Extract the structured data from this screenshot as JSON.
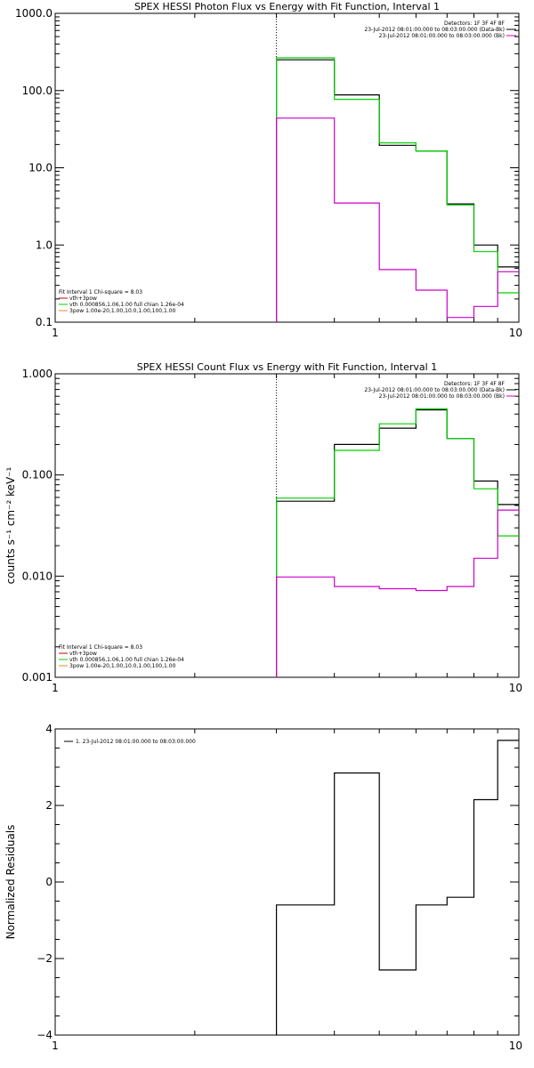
{
  "colors": {
    "black": "#000000",
    "green": "#00d000",
    "magenta": "#cc00cc",
    "orange": "#e09020",
    "red": "#d00000"
  },
  "chart_data": [
    {
      "id": "photon",
      "type": "line",
      "title": "SPEX HESSI Photon Flux vs Energy with Fit Function, Interval 1",
      "xlabel": "",
      "ylabel": "",
      "xscale": "log",
      "yscale": "log",
      "xlim": [
        1,
        10
      ],
      "ylim": [
        0.1,
        1000
      ],
      "xticks": [
        "1",
        "10"
      ],
      "yticks": [
        {
          "v": 0.1,
          "label": "0.1"
        },
        {
          "v": 1,
          "label": "1.0"
        },
        {
          "v": 10,
          "label": "10.0"
        },
        {
          "v": 100,
          "label": "100.0"
        },
        {
          "v": 1000,
          "label": "1000.0"
        }
      ],
      "dotted_x": 3.0,
      "info_top_right": [
        {
          "text": "Detectors: 1F 3F 4F 8F",
          "color": ""
        },
        {
          "text": "23-Jul-2012 08:01:00.000 to 08:03:00.000 (Data-Bk)",
          "color": "#000000"
        },
        {
          "text": "23-Jul-2012 08:01:00.000 to 08:03:00.000 (Bk)",
          "color": "#cc00cc"
        }
      ],
      "legend_bottom_left": [
        {
          "text": "Fit Interval 1   Chi-square = 8.03",
          "color": ""
        },
        {
          "text": "vth+3pow",
          "color": "#d00000"
        },
        {
          "text": "vth 0.000856,1.06,1.00  full chian 1.26e-04",
          "color": "#00d000"
        },
        {
          "text": "3pow 1.00e-20,1.00,10.0,1.00,100,1.00",
          "color": "#e09020"
        }
      ],
      "series": [
        {
          "name": "Data-Bk",
          "color": "#000000",
          "edges": [
            3.0,
            4.0,
            5.0,
            6.0,
            7.0,
            8.0,
            9.0,
            10.0
          ],
          "values": [
            250,
            88,
            19.5,
            16.5,
            3.4,
            1.0,
            0.52
          ]
        },
        {
          "name": "vth",
          "color": "#00d000",
          "edges": [
            3.0,
            4.0,
            5.0,
            6.0,
            7.0,
            8.0,
            9.0,
            10.0
          ],
          "values": [
            265,
            77,
            21,
            16.5,
            3.3,
            0.82,
            0.24
          ]
        },
        {
          "name": "Bk",
          "color": "#cc00cc",
          "edges": [
            3.0,
            4.0,
            5.0,
            6.0,
            7.0,
            8.0,
            9.0,
            10.0
          ],
          "values": [
            44,
            3.5,
            0.48,
            0.26,
            0.115,
            0.16,
            0.45
          ]
        }
      ]
    },
    {
      "id": "count",
      "type": "line",
      "title": "SPEX HESSI Count Flux vs Energy with Fit Function, Interval 1",
      "xlabel": "",
      "ylabel": "counts s⁻¹ cm⁻² keV⁻¹",
      "xscale": "log",
      "yscale": "log",
      "xlim": [
        1,
        10
      ],
      "ylim": [
        0.001,
        1
      ],
      "xticks": [
        "1",
        "10"
      ],
      "yticks": [
        {
          "v": 0.001,
          "label": "0.001"
        },
        {
          "v": 0.01,
          "label": "0.010"
        },
        {
          "v": 0.1,
          "label": "0.100"
        },
        {
          "v": 1,
          "label": "1.000"
        }
      ],
      "dotted_x": 3.0,
      "info_top_right": [
        {
          "text": "Detectors: 1F 3F 4F 8F",
          "color": ""
        },
        {
          "text": "23-Jul-2012 08:01:00.000 to 08:03:00.000 (Data-Bk)",
          "color": "#000000"
        },
        {
          "text": "23-Jul-2012 08:01:00.000 to 08:03:00.000 (Bk)",
          "color": "#cc00cc"
        }
      ],
      "legend_bottom_left": [
        {
          "text": "Fit Interval 1   Chi-square = 8.03",
          "color": ""
        },
        {
          "text": "vth+3pow",
          "color": "#d00000"
        },
        {
          "text": "vth 0.000856,1.06,1.00  full chian 1.26e-04",
          "color": "#00d000"
        },
        {
          "text": "3pow 1.00e-20,1.00,10.0,1.00,100,1.00",
          "color": "#e09020"
        }
      ],
      "series": [
        {
          "name": "Data-Bk",
          "color": "#000000",
          "edges": [
            3.0,
            4.0,
            5.0,
            6.0,
            7.0,
            8.0,
            9.0,
            10.0
          ],
          "values": [
            0.055,
            0.2,
            0.29,
            0.44,
            0.23,
            0.087,
            0.051
          ]
        },
        {
          "name": "vth",
          "color": "#00d000",
          "edges": [
            3.0,
            4.0,
            5.0,
            6.0,
            7.0,
            8.0,
            9.0,
            10.0
          ],
          "values": [
            0.059,
            0.175,
            0.32,
            0.45,
            0.23,
            0.073,
            0.025
          ]
        },
        {
          "name": "Bk",
          "color": "#cc00cc",
          "edges": [
            3.0,
            4.0,
            5.0,
            6.0,
            7.0,
            8.0,
            9.0,
            10.0
          ],
          "values": [
            0.0098,
            0.0079,
            0.0075,
            0.0072,
            0.0079,
            0.015,
            0.045
          ]
        }
      ]
    },
    {
      "id": "resid",
      "type": "line",
      "title": "",
      "xlabel": "",
      "ylabel": "Normalized Residuals",
      "xscale": "log",
      "yscale": "linear",
      "xlim": [
        1,
        10
      ],
      "ylim": [
        -4,
        4
      ],
      "xticks": [
        "1",
        "10"
      ],
      "yticks": [
        {
          "v": -4,
          "label": "−4"
        },
        {
          "v": -2,
          "label": "−2"
        },
        {
          "v": 0,
          "label": "0"
        },
        {
          "v": 2,
          "label": "2"
        },
        {
          "v": 4,
          "label": "4"
        }
      ],
      "dotted_x": null,
      "info_top_right": [],
      "legend_top_left": [
        {
          "text": "1. 23-Jul-2012 08:01:00.000 to 08:03:00.000",
          "color": "#000000"
        }
      ],
      "legend_bottom_left": [],
      "series": [
        {
          "name": "1. 23-Jul-2012 08:01:00.000 to 08:03:00.000",
          "color": "#000000",
          "edges": [
            3.0,
            4.0,
            5.0,
            6.0,
            7.0,
            8.0,
            9.0,
            10.0
          ],
          "values": [
            -0.6,
            2.85,
            -2.3,
            -0.6,
            -0.4,
            2.15,
            3.7
          ],
          "floor": -4
        }
      ]
    }
  ]
}
